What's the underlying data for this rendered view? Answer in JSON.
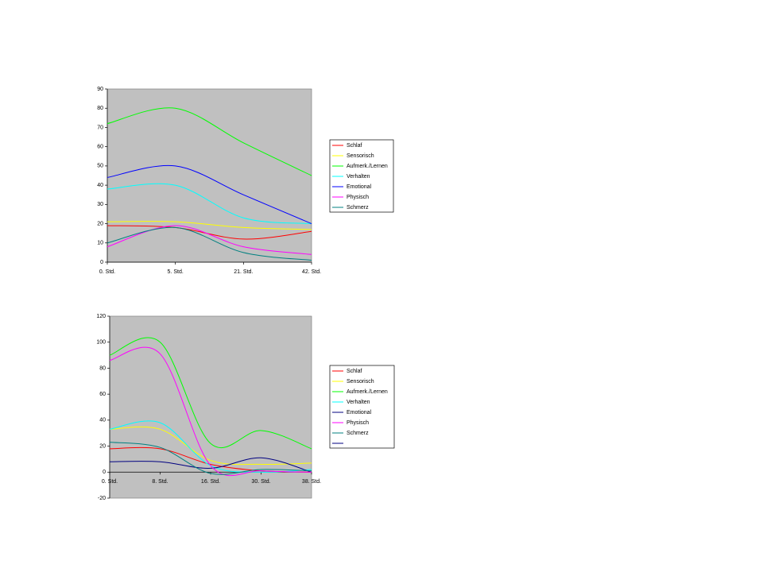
{
  "chart_data": [
    {
      "type": "line",
      "categories": [
        "0. Std.",
        "5. Std.",
        "21. Std.",
        "42. Std."
      ],
      "ylim": [
        0,
        90
      ],
      "yticks": [
        0,
        10,
        20,
        30,
        40,
        50,
        60,
        70,
        80,
        90
      ],
      "series": [
        {
          "name": "Schlaf",
          "color": "#ff0000",
          "values": [
            19,
            18,
            12,
            16
          ]
        },
        {
          "name": "Sensorisch",
          "color": "#ffff00",
          "values": [
            21,
            21,
            18,
            17
          ]
        },
        {
          "name": "Aufmerk./Lernen",
          "color": "#00ff00",
          "values": [
            72,
            80,
            62,
            45
          ]
        },
        {
          "name": "Verhalten",
          "color": "#00ffff",
          "values": [
            38,
            40,
            23,
            20
          ]
        },
        {
          "name": "Emotional",
          "color": "#0000ff",
          "values": [
            44,
            50,
            35,
            20
          ]
        },
        {
          "name": "Physisch",
          "color": "#ff00ff",
          "values": [
            8,
            19,
            8,
            4
          ]
        },
        {
          "name": "Schmerz",
          "color": "#008080",
          "values": [
            10,
            18,
            5,
            1
          ]
        }
      ]
    },
    {
      "type": "line",
      "categories": [
        "0. Std.",
        "8. Std.",
        "16. Std.",
        "30. Std.",
        "38. Std."
      ],
      "ylim": [
        -20,
        120
      ],
      "yticks": [
        -20,
        0,
        20,
        40,
        60,
        80,
        100,
        120
      ],
      "series": [
        {
          "name": "Schlaf",
          "color": "#ff0000",
          "values": [
            18,
            18,
            6,
            1,
            0
          ]
        },
        {
          "name": "Sensorisch",
          "color": "#ffff00",
          "values": [
            33,
            33,
            9,
            6,
            7
          ]
        },
        {
          "name": "Aufmerk./Lernen",
          "color": "#00ff00",
          "values": [
            90,
            100,
            22,
            32,
            18
          ]
        },
        {
          "name": "Verhalten",
          "color": "#00ffff",
          "values": [
            33,
            38,
            5,
            0,
            2
          ]
        },
        {
          "name": "Emotional",
          "color": "#000080",
          "values": [
            8,
            8,
            3,
            11,
            0
          ]
        },
        {
          "name": "Physisch",
          "color": "#ff00ff",
          "values": [
            86,
            91,
            5,
            1,
            0
          ]
        },
        {
          "name": "Schmerz",
          "color": "#008080",
          "values": [
            23,
            19,
            -1,
            2,
            1
          ]
        }
      ]
    }
  ]
}
